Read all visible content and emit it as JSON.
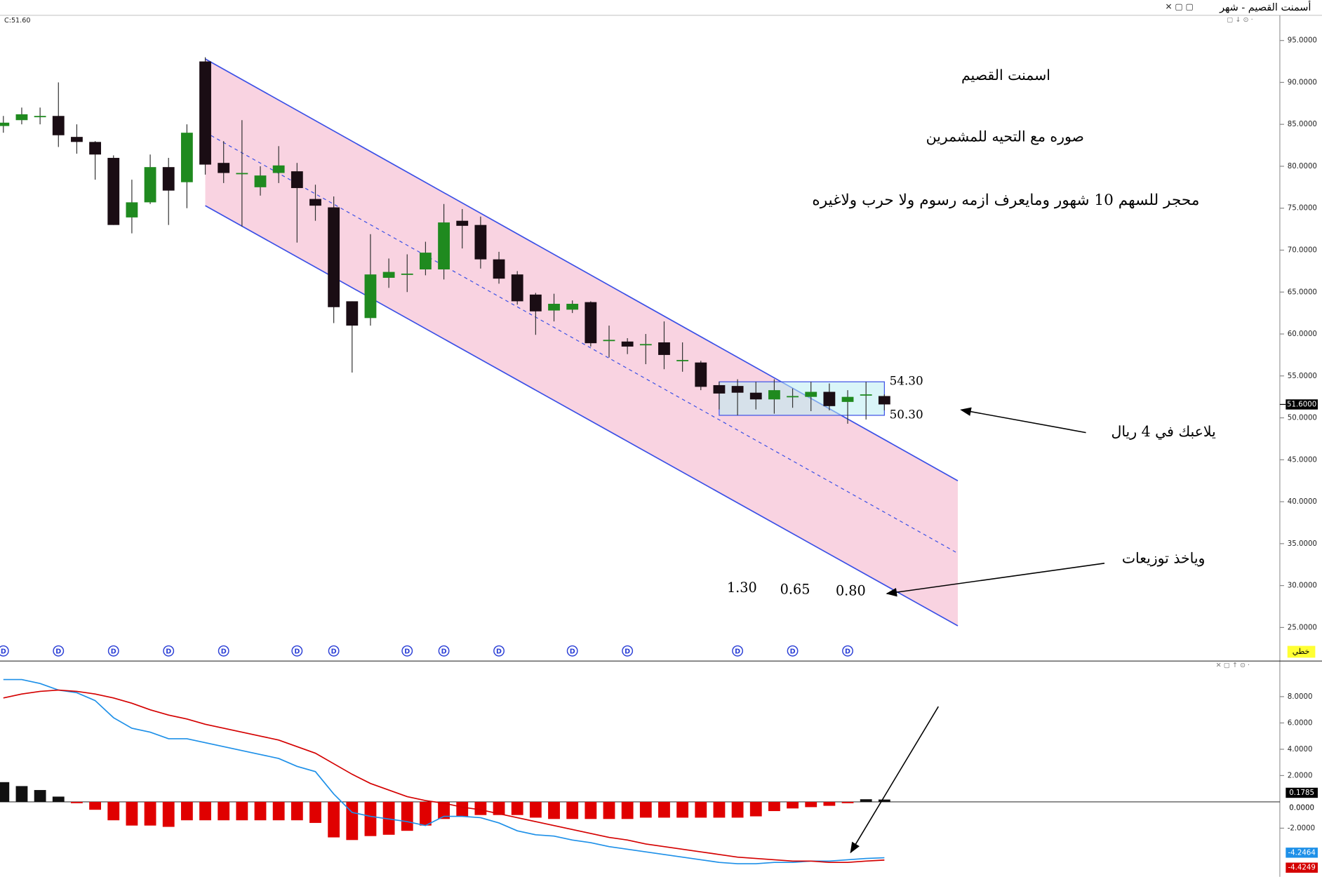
{
  "title": "أسمنت القصيم - شهر",
  "price_label": "C:51.60",
  "mode_label": "خطي",
  "chart_data": [
    {
      "type": "candlestick",
      "open": [
        84.8,
        85.5,
        86,
        86,
        83.5,
        82.9,
        81,
        73.9,
        75.7,
        79.9,
        78.1,
        92.5,
        80.4,
        79.2,
        77.5,
        79.2,
        79.4,
        76.1,
        75.1,
        63.9,
        61.9,
        66.7,
        67.2,
        67.7,
        67.7,
        73.5,
        73,
        68.9,
        67.1,
        64.7,
        62.8,
        62.9,
        63.8,
        59.3,
        59.1,
        58.8,
        59,
        56.9,
        56.6,
        53.9,
        53.8,
        53,
        52.2,
        52.6,
        52.5,
        53.1,
        51.9,
        52.8,
        52.6
      ],
      "high": [
        86,
        87,
        87,
        90,
        85,
        83,
        81.3,
        78.4,
        81.4,
        81,
        85,
        93,
        83,
        85.5,
        80,
        82.4,
        80.4,
        77.8,
        76.4,
        63.9,
        71.9,
        69,
        69.5,
        71,
        75.5,
        74.9,
        74,
        69.8,
        67.5,
        64.9,
        64.8,
        64,
        63.9,
        61,
        59.5,
        60,
        61.5,
        59,
        56.8,
        54.3,
        54.6,
        54.3,
        54.6,
        53.5,
        54.3,
        54.1,
        53.3,
        54.3,
        52.8
      ],
      "low": [
        84,
        85,
        85,
        82.3,
        81.5,
        78.4,
        73,
        72,
        75.5,
        73,
        75,
        79,
        78,
        72.8,
        76.5,
        78,
        70.9,
        73.5,
        61.3,
        55.4,
        61,
        65.5,
        65,
        67,
        66.5,
        70.2,
        67.8,
        66,
        63.5,
        59.9,
        61.5,
        62.5,
        58.5,
        57.2,
        57.6,
        56.4,
        55.8,
        55.5,
        53.3,
        51,
        50.3,
        51,
        50.5,
        51.2,
        50.8,
        50.9,
        49.3,
        49.8,
        50.9
      ],
      "close": [
        85.2,
        86.2,
        86,
        83.7,
        82.9,
        81.4,
        73,
        75.7,
        79.9,
        77.1,
        84,
        80.2,
        79.2,
        79.2,
        78.9,
        80.1,
        77.4,
        75.3,
        63.2,
        61,
        67.1,
        67.4,
        67.2,
        69.7,
        73.3,
        72.9,
        68.9,
        66.6,
        63.9,
        62.7,
        63.6,
        63.6,
        58.9,
        59.3,
        58.5,
        58.8,
        57.5,
        56.9,
        53.7,
        52.9,
        53,
        52.2,
        53.3,
        52.6,
        53.1,
        51.4,
        52.5,
        52.8,
        51.6
      ],
      "up_color": "#1f8a1f",
      "down_color": "#1a0d14",
      "ylim": [
        21.2,
        98
      ],
      "yticks": [
        {
          "value": 25,
          "label": "25.0000"
        },
        {
          "value": 30,
          "label": "30.0000"
        },
        {
          "value": 35,
          "label": "35.0000"
        },
        {
          "value": 40,
          "label": "40.0000"
        },
        {
          "value": 45,
          "label": "45.0000"
        },
        {
          "value": 50,
          "label": "50.0000"
        },
        {
          "value": 55,
          "label": "55.0000"
        },
        {
          "value": 60,
          "label": "60.0000"
        },
        {
          "value": 65,
          "label": "65.0000"
        },
        {
          "value": 70,
          "label": "70.0000"
        },
        {
          "value": 75,
          "label": "75.0000"
        },
        {
          "value": 80,
          "label": "80.0000"
        },
        {
          "value": 85,
          "label": "85.0000"
        },
        {
          "value": 90,
          "label": "90.0000"
        },
        {
          "value": 95,
          "label": "95.0000"
        }
      ],
      "last": {
        "value": 51.6,
        "label": "51.6000"
      },
      "channel": {
        "start": 11,
        "end": 52,
        "upper": [
          92.8,
          42.5
        ],
        "middle": [
          84.05,
          33.85
        ],
        "lower": [
          75.3,
          25.2
        ],
        "fill": "#f9d3e1",
        "color": "#3b50e6"
      },
      "range_box": {
        "start": 39,
        "end": 48,
        "high": 54.3,
        "low": 50.3,
        "labels": [
          "54.30",
          "50.30"
        ],
        "fill": "#b9ecf3"
      },
      "dividend_markers": {
        "label": "D",
        "indices": [
          0,
          3,
          6,
          9,
          12,
          16,
          18,
          22,
          24,
          27,
          31,
          34,
          40,
          43,
          46
        ]
      },
      "dividends": {
        "values": [
          1.3,
          0.65,
          0.8
        ],
        "value_labels": [
          "1.30",
          "0.65",
          "0.80"
        ]
      },
      "annotations": [
        "اسمنت القصيم",
        "صوره مع التحيه للمشمرين",
        "محجر للسهم 10 شهور ومايعرف ازمه رسوم ولا حرب ولاغيره",
        "يلاعبك في 4 ريال",
        "وياخذ توزيعات"
      ]
    },
    {
      "type": "macd",
      "histogram": [
        1.5,
        1.2,
        0.9,
        0.4,
        -0.1,
        -0.6,
        -1.4,
        -1.8,
        -1.8,
        -1.9,
        -1.4,
        -1.4,
        -1.4,
        -1.4,
        -1.4,
        -1.4,
        -1.4,
        -1.6,
        -2.7,
        -2.9,
        -2.6,
        -2.5,
        -2.2,
        -1.8,
        -1.3,
        -1.1,
        -1.0,
        -1.0,
        -1.0,
        -1.2,
        -1.3,
        -1.3,
        -1.3,
        -1.3,
        -1.3,
        -1.2,
        -1.2,
        -1.2,
        -1.2,
        -1.2,
        -1.2,
        -1.1,
        -0.7,
        -0.5,
        -0.4,
        -0.3,
        -0.1,
        0.2,
        0.1785
      ],
      "histogram_last_label": "0.1785",
      "pos_color": "#111111",
      "neg_color": "#e00000",
      "series": [
        {
          "name": "MACD",
          "color": "#1e90e8",
          "last_label": "-4.2464",
          "values": [
            9.3,
            9.3,
            9.0,
            8.5,
            8.3,
            7.7,
            6.4,
            5.6,
            5.3,
            4.8,
            4.8,
            4.5,
            4.2,
            3.9,
            3.6,
            3.3,
            2.7,
            2.3,
            0.6,
            -0.8,
            -1.1,
            -1.3,
            -1.5,
            -1.8,
            -1.1,
            -1.1,
            -1.2,
            -1.6,
            -2.2,
            -2.5,
            -2.6,
            -2.9,
            -3.1,
            -3.4,
            -3.6,
            -3.8,
            -4.0,
            -4.2,
            -4.4,
            -4.6,
            -4.7,
            -4.7,
            -4.6,
            -4.6,
            -4.5,
            -4.5,
            -4.4,
            -4.3,
            -4.2464
          ]
        },
        {
          "name": "Signal",
          "color": "#d40000",
          "last_label": "-4.4249",
          "values": [
            7.9,
            8.2,
            8.4,
            8.5,
            8.4,
            8.2,
            7.9,
            7.5,
            7.0,
            6.6,
            6.3,
            5.9,
            5.6,
            5.3,
            5.0,
            4.7,
            4.2,
            3.7,
            2.9,
            2.1,
            1.4,
            0.9,
            0.4,
            0.1,
            -0.1,
            -0.4,
            -0.6,
            -0.9,
            -1.2,
            -1.5,
            -1.8,
            -2.1,
            -2.4,
            -2.7,
            -2.9,
            -3.2,
            -3.4,
            -3.6,
            -3.8,
            -4.0,
            -4.2,
            -4.3,
            -4.4,
            -4.5,
            -4.5,
            -4.6,
            -4.6,
            -4.5,
            -4.4249
          ]
        }
      ],
      "ylim": [
        -5.7,
        10
      ],
      "yticks": [
        {
          "value": 8,
          "label": "8.0000"
        },
        {
          "value": 6,
          "label": "6.0000"
        },
        {
          "value": 4,
          "label": "4.0000"
        },
        {
          "value": 2,
          "label": "2.0000"
        },
        {
          "value": -2,
          "label": "-2.0000"
        }
      ],
      "baseline": {
        "value": 0,
        "label": "0.0000"
      }
    }
  ]
}
